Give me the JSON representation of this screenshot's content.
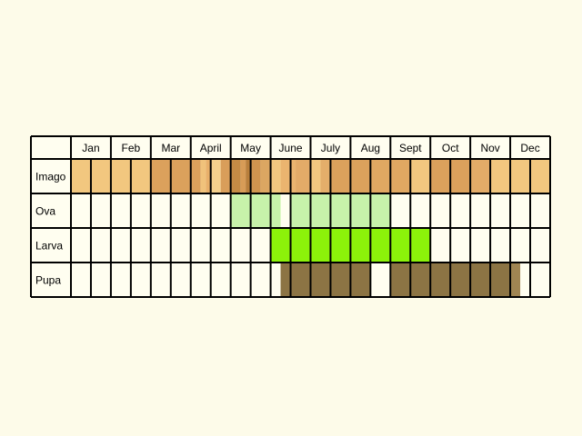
{
  "months": [
    "Jan",
    "Feb",
    "Mar",
    "April",
    "May",
    "June",
    "July",
    "Aug",
    "Sept",
    "Oct",
    "Nov",
    "Dec"
  ],
  "stages": [
    {
      "name": "Imago",
      "segments": [
        {
          "start": 0,
          "end": 4,
          "color": "#f2c77f"
        },
        {
          "start": 4,
          "end": 6.5,
          "color": "#dba15c"
        },
        {
          "start": 6.5,
          "end": 6.75,
          "color": "#f0c27b"
        },
        {
          "start": 6.75,
          "end": 7,
          "color": "#e8b06a"
        },
        {
          "start": 7,
          "end": 7.5,
          "color": "#f4cf8c"
        },
        {
          "start": 7.5,
          "end": 8,
          "color": "#d99e5a"
        },
        {
          "start": 8,
          "end": 8.5,
          "color": "#c48b45"
        },
        {
          "start": 8.5,
          "end": 8.75,
          "color": "#d89c57"
        },
        {
          "start": 8.75,
          "end": 9,
          "color": "#b97f3c"
        },
        {
          "start": 9,
          "end": 9.5,
          "color": "#cf944f"
        },
        {
          "start": 9.5,
          "end": 10,
          "color": "#dca662"
        },
        {
          "start": 10,
          "end": 10.5,
          "color": "#f2c77f"
        },
        {
          "start": 10.5,
          "end": 11.25,
          "color": "#eab46f"
        },
        {
          "start": 11.25,
          "end": 12,
          "color": "#e3ab68"
        },
        {
          "start": 12,
          "end": 12.5,
          "color": "#f2c77f"
        },
        {
          "start": 12.5,
          "end": 13,
          "color": "#e4ae6a"
        },
        {
          "start": 13,
          "end": 15,
          "color": "#dba15c"
        },
        {
          "start": 15,
          "end": 17,
          "color": "#e0a862"
        },
        {
          "start": 17,
          "end": 18,
          "color": "#f2c77f"
        },
        {
          "start": 18,
          "end": 20,
          "color": "#dba15c"
        },
        {
          "start": 20,
          "end": 21,
          "color": "#e3ab68"
        },
        {
          "start": 21,
          "end": 24,
          "color": "#f2c77f"
        }
      ]
    },
    {
      "name": "Ova",
      "segments": [
        {
          "start": 8,
          "end": 10.5,
          "color": "#c7f2aa"
        },
        {
          "start": 11,
          "end": 16,
          "color": "#c7f2aa"
        }
      ]
    },
    {
      "name": "Larva",
      "segments": [
        {
          "start": 10,
          "end": 18,
          "color": "#8cf20a"
        }
      ]
    },
    {
      "name": "Pupa",
      "segments": [
        {
          "start": 10.5,
          "end": 15,
          "color": "#8c7444"
        },
        {
          "start": 16,
          "end": 22,
          "color": "#8c7444"
        },
        {
          "start": 22,
          "end": 22.5,
          "color": "#a08552"
        }
      ]
    }
  ],
  "colors": {
    "background": "#fdfbe9",
    "cell": "#fffef0",
    "grid": "#000000"
  }
}
